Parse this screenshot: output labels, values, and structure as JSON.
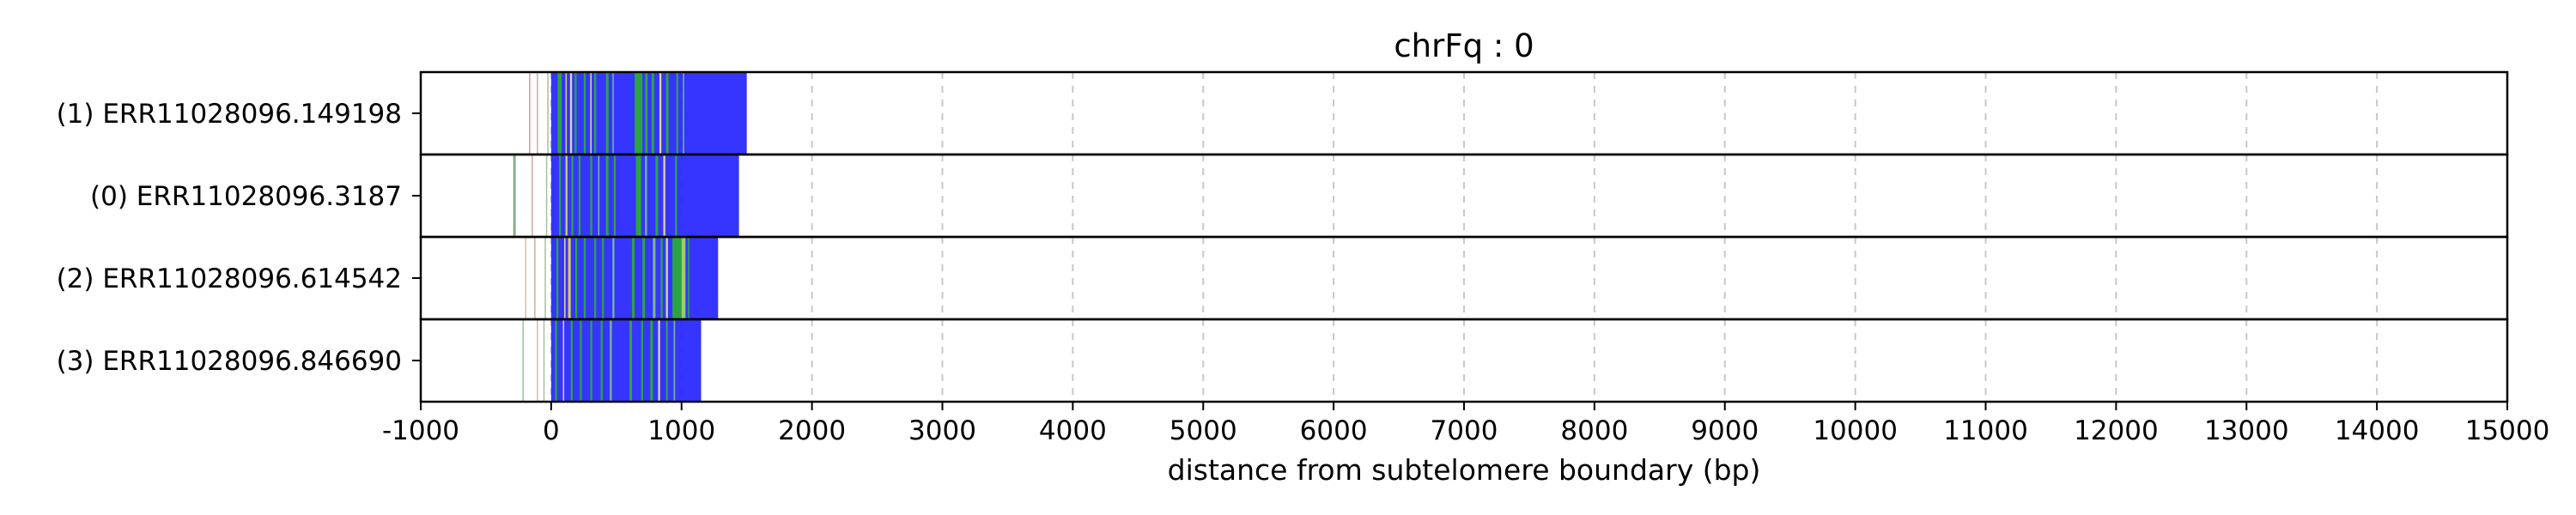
{
  "chart_data": {
    "type": "heatmap",
    "title": "chrFq : 0",
    "xlabel": "distance from subtelomere boundary (bp)",
    "ylabel": "",
    "xlim": [
      -1000,
      15000
    ],
    "x_ticks": [
      -1000,
      0,
      1000,
      2000,
      3000,
      4000,
      5000,
      6000,
      7000,
      8000,
      9000,
      10000,
      11000,
      12000,
      13000,
      14000,
      15000
    ],
    "x_tick_labels": [
      "-1000",
      "0",
      "1000",
      "2000",
      "3000",
      "4000",
      "5000",
      "6000",
      "7000",
      "8000",
      "9000",
      "10000",
      "11000",
      "12000",
      "13000",
      "14000",
      "15000"
    ],
    "grid": "vertical dashed",
    "reads": [
      {
        "label": "(1) ERR11028096.149198",
        "base_start": 0,
        "base_end": 1500,
        "segments": [
          [
            -170,
            -160,
            "#d98c9a"
          ],
          [
            -110,
            -100,
            "#c7a29a"
          ],
          [
            -30,
            -20,
            "#9fb89a"
          ],
          [
            50,
            80,
            "#2bb02b"
          ],
          [
            110,
            120,
            "#e7e04a"
          ],
          [
            145,
            160,
            "#f0ec8a"
          ],
          [
            180,
            195,
            "#2bb02b"
          ],
          [
            250,
            265,
            "#2bb02b"
          ],
          [
            300,
            310,
            "#f0ec8a"
          ],
          [
            330,
            345,
            "#2bb02b"
          ],
          [
            420,
            440,
            "#2bb02b"
          ],
          [
            470,
            480,
            "#7fc97f"
          ],
          [
            640,
            700,
            "#2bb02b"
          ],
          [
            720,
            740,
            "#2bb02b"
          ],
          [
            770,
            790,
            "#2bb02b"
          ],
          [
            830,
            845,
            "#f0ec8a"
          ],
          [
            880,
            900,
            "#2bb02b"
          ],
          [
            960,
            975,
            "#2bb02b"
          ],
          [
            1010,
            1020,
            "#7fc97f"
          ]
        ]
      },
      {
        "label": "(0) ERR11028096.3187",
        "base_start": 0,
        "base_end": 1440,
        "segments": [
          [
            -290,
            -285,
            "#5f8f5f"
          ],
          [
            -280,
            -275,
            "#8fbc8f"
          ],
          [
            -150,
            -140,
            "#c7a29a"
          ],
          [
            -40,
            -30,
            "#9fb89a"
          ],
          [
            60,
            75,
            "#2bb02b"
          ],
          [
            110,
            125,
            "#e7e04a"
          ],
          [
            155,
            170,
            "#2bb02b"
          ],
          [
            210,
            225,
            "#2bb02b"
          ],
          [
            300,
            315,
            "#2bb02b"
          ],
          [
            360,
            370,
            "#7fc97f"
          ],
          [
            420,
            440,
            "#2bb02b"
          ],
          [
            480,
            495,
            "#2bb02b"
          ],
          [
            650,
            690,
            "#2bb02b"
          ],
          [
            720,
            735,
            "#7fc97f"
          ],
          [
            800,
            820,
            "#2bb02b"
          ],
          [
            860,
            875,
            "#f0ec8a"
          ],
          [
            950,
            965,
            "#2bb02b"
          ]
        ]
      },
      {
        "label": "(2) ERR11028096.614542",
        "base_start": 0,
        "base_end": 1280,
        "segments": [
          [
            -200,
            -195,
            "#d9b59a"
          ],
          [
            -130,
            -125,
            "#c7a29a"
          ],
          [
            -50,
            -40,
            "#9fb89a"
          ],
          [
            40,
            55,
            "#2bb02b"
          ],
          [
            100,
            110,
            "#f0ec8a"
          ],
          [
            130,
            150,
            "#e7e04a"
          ],
          [
            185,
            200,
            "#2bb02b"
          ],
          [
            250,
            265,
            "#2bb02b"
          ],
          [
            330,
            345,
            "#2bb02b"
          ],
          [
            390,
            405,
            "#2bb02b"
          ],
          [
            470,
            485,
            "#7fc97f"
          ],
          [
            620,
            640,
            "#2bb02b"
          ],
          [
            700,
            720,
            "#2bb02b"
          ],
          [
            780,
            800,
            "#7fc97f"
          ],
          [
            840,
            855,
            "#2bb02b"
          ],
          [
            880,
            895,
            "#f0ec8a"
          ],
          [
            930,
            1000,
            "#2bb02b"
          ],
          [
            1000,
            1030,
            "#a6d96a"
          ],
          [
            1050,
            1060,
            "#2bb02b"
          ]
        ]
      },
      {
        "label": "(3) ERR11028096.846690",
        "base_start": 0,
        "base_end": 1150,
        "segments": [
          [
            -220,
            -215,
            "#8fbc8f"
          ],
          [
            -110,
            -105,
            "#d9b59a"
          ],
          [
            -60,
            -55,
            "#9fb89a"
          ],
          [
            30,
            45,
            "#2bb02b"
          ],
          [
            90,
            100,
            "#f0ec8a"
          ],
          [
            150,
            165,
            "#2bb02b"
          ],
          [
            220,
            235,
            "#2bb02b"
          ],
          [
            300,
            315,
            "#2bb02b"
          ],
          [
            380,
            395,
            "#2bb02b"
          ],
          [
            450,
            465,
            "#7fc97f"
          ],
          [
            600,
            620,
            "#2bb02b"
          ],
          [
            690,
            705,
            "#2bb02b"
          ],
          [
            760,
            780,
            "#2bb02b"
          ],
          [
            820,
            835,
            "#f0ec8a"
          ],
          [
            880,
            895,
            "#2bb02b"
          ],
          [
            940,
            950,
            "#7fc97f"
          ]
        ]
      }
    ],
    "colors": {
      "base": "#1f1fff",
      "grid": "#c8c8c8",
      "frame": "#000000"
    }
  }
}
